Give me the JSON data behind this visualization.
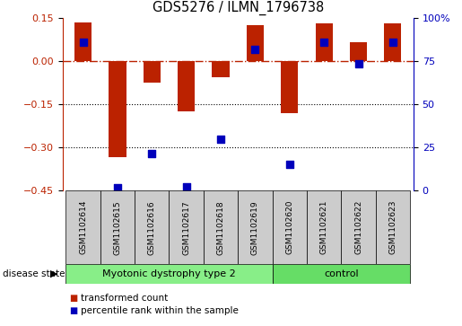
{
  "title": "GDS5276 / ILMN_1796738",
  "samples": [
    "GSM1102614",
    "GSM1102615",
    "GSM1102616",
    "GSM1102617",
    "GSM1102618",
    "GSM1102619",
    "GSM1102620",
    "GSM1102621",
    "GSM1102622",
    "GSM1102623"
  ],
  "red_bars": [
    0.135,
    -0.335,
    -0.075,
    -0.175,
    -0.055,
    0.125,
    -0.18,
    0.13,
    0.065,
    0.13
  ],
  "blue_dots": [
    0.065,
    -0.44,
    -0.32,
    -0.435,
    -0.27,
    0.04,
    -0.36,
    0.065,
    -0.01,
    0.065
  ],
  "ylim": [
    -0.45,
    0.15
  ],
  "yticks_left": [
    -0.45,
    -0.3,
    -0.15,
    0.0,
    0.15
  ],
  "yticks_right": [
    0,
    25,
    50,
    75,
    100
  ],
  "y_right_labels": [
    "0",
    "25",
    "50",
    "75",
    "100%"
  ],
  "hline_y": 0.0,
  "dotted_lines": [
    -0.15,
    -0.3
  ],
  "bar_color": "#bb2200",
  "dot_color": "#0000bb",
  "disease_groups": [
    {
      "label": "Myotonic dystrophy type 2",
      "start": 0,
      "end": 6,
      "color": "#88ee88"
    },
    {
      "label": "control",
      "start": 6,
      "end": 10,
      "color": "#66dd66"
    }
  ],
  "disease_state_label": "disease state",
  "legend_items": [
    {
      "color": "#bb2200",
      "label": "transformed count"
    },
    {
      "color": "#0000bb",
      "label": "percentile rank within the sample"
    }
  ],
  "bar_width": 0.5,
  "dot_size": 35,
  "background_color": "#ffffff",
  "sample_box_color": "#cccccc"
}
